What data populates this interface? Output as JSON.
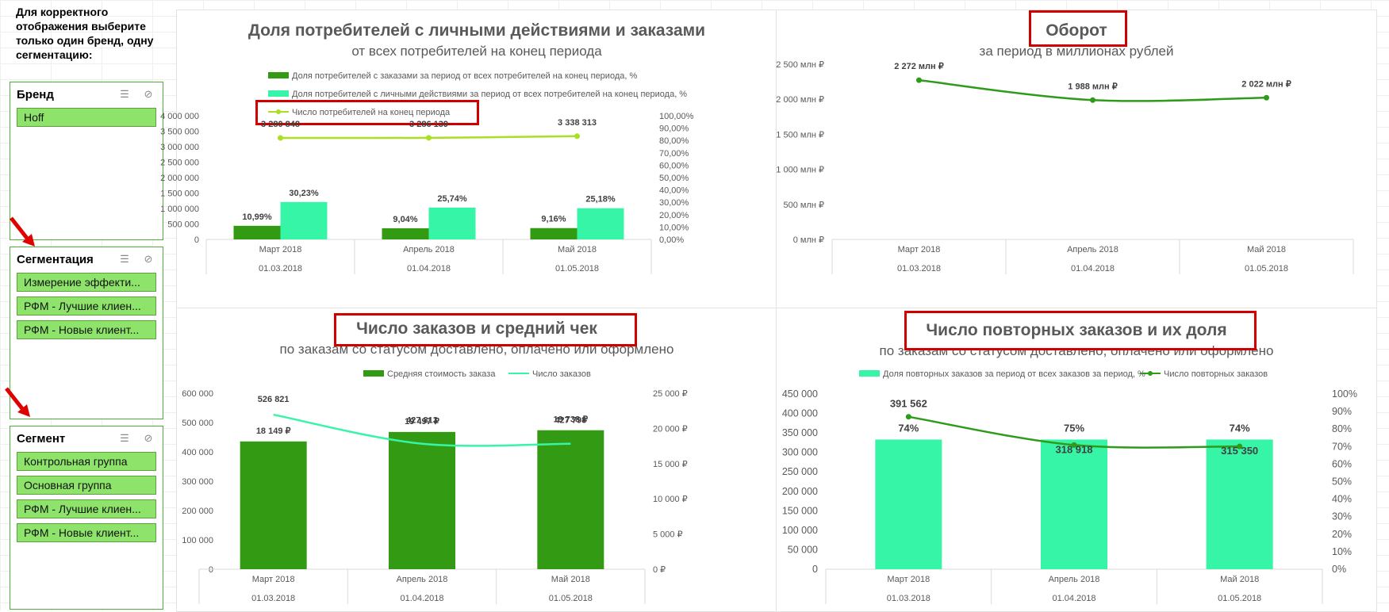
{
  "sidebar": {
    "instruction": "Для корректного отображения выберите только один бренд, одну сегментацию:",
    "slicers": [
      {
        "title": "Бренд",
        "items": [
          "Hoff"
        ]
      },
      {
        "title": "Сегментация",
        "items": [
          "Измерение эффекти...",
          "РФМ - Лучшие клиен...",
          "РФМ - Новые клиент..."
        ]
      },
      {
        "title": "Сегмент",
        "items": [
          "Контрольная группа",
          "Основная группа",
          "РФМ - Лучшие клиен...",
          "РФМ - Новые клиент..."
        ]
      }
    ]
  },
  "colors": {
    "dark_green": "#339a14",
    "light_green": "#37f5a6",
    "lime": "#a9e021",
    "line_green": "#2e9b1b",
    "red": "#d00000"
  },
  "icons": [
    "multiselect-icon",
    "clear-filter-icon",
    "red-arrow-icon"
  ],
  "panels": {
    "p1": {
      "title": "Доля потребителей с личными действиями и заказами",
      "subtitle": "от всех потребителей на конец периода"
    },
    "p2": {
      "title": "Оборот",
      "subtitle": "за период в миллионах рублей"
    },
    "p3": {
      "title": "Число заказов и средний чек",
      "subtitle": "по заказам со статусом доставлено, оплачено или оформлено"
    },
    "p4": {
      "title": "Число повторных заказов и их доля",
      "subtitle": "по заказам со статусом доставлено, оплачено или оформлено"
    }
  },
  "chart_data": [
    {
      "type": "bar",
      "categories": [
        "Март 2018",
        "Апрель 2018",
        "Май 2018"
      ],
      "category_dates": [
        "01.03.2018",
        "01.04.2018",
        "01.05.2018"
      ],
      "series": [
        {
          "name": "Доля потребителей с заказами за период от всех потребителей на конец периода, %",
          "values": [
            10.99,
            9.04,
            9.16
          ],
          "labels": [
            "10,99%",
            "9,04%",
            "9,16%"
          ],
          "axis": "right"
        },
        {
          "name": "Доля потребителей с личными действиями за период от всех потребителей на конец периода, %",
          "values": [
            30.23,
            25.74,
            25.18
          ],
          "labels": [
            "30,23%",
            "25,74%",
            "25,18%"
          ],
          "axis": "right"
        },
        {
          "name": "Число потребителей на конец периода",
          "type": "line",
          "values": [
            3280848,
            3286139,
            3338313
          ],
          "labels": [
            "3 280 848",
            "3 286 139",
            "3 338 313"
          ],
          "axis": "left"
        }
      ],
      "ylim_left": [
        0,
        4000000
      ],
      "left_ticks": [
        "4 000 000",
        "3 500 000",
        "3 000 000",
        "2 500 000",
        "2 000 000",
        "1 500 000",
        "1 000 000",
        "500 000",
        "0"
      ],
      "ylim_right": [
        0,
        100
      ],
      "right_ticks": [
        "100,00%",
        "90,00%",
        "80,00%",
        "70,00%",
        "60,00%",
        "50,00%",
        "40,00%",
        "30,00%",
        "20,00%",
        "10,00%",
        "0,00%"
      ]
    },
    {
      "type": "line",
      "categories": [
        "Март 2018",
        "Апрель 2018",
        "Май 2018"
      ],
      "category_dates": [
        "01.03.2018",
        "01.04.2018",
        "01.05.2018"
      ],
      "series": [
        {
          "values": [
            2272,
            1988,
            2022
          ],
          "labels": [
            "2 272 млн ₽",
            "1 988 млн ₽",
            "2 022 млн ₽"
          ]
        }
      ],
      "ylim": [
        0,
        2500
      ],
      "ticks": [
        "2 500 млн ₽",
        "2 000 млн ₽",
        "1 500 млн ₽",
        "1 000 млн ₽",
        "500 млн ₽",
        "0 млн ₽"
      ]
    },
    {
      "type": "bar",
      "categories": [
        "Март 2018",
        "Апрель 2018",
        "Май 2018"
      ],
      "category_dates": [
        "01.03.2018",
        "01.04.2018",
        "01.05.2018"
      ],
      "series": [
        {
          "name": "Средняя стоимость заказа",
          "values": [
            18149,
            19497,
            19738
          ],
          "labels": [
            "18 149 ₽",
            "19 497 ₽",
            "19 738 ₽"
          ],
          "axis": "right"
        },
        {
          "name": "Число заказов",
          "type": "line",
          "values": [
            526821,
            427813,
            427798
          ],
          "labels": [
            "526 821",
            "427 813",
            "427 798"
          ],
          "axis": "left"
        }
      ],
      "ylim_left": [
        0,
        600000
      ],
      "left_ticks": [
        "600 000",
        "500 000",
        "400 000",
        "300 000",
        "200 000",
        "100 000",
        "0"
      ],
      "ylim_right": [
        0,
        25000
      ],
      "right_ticks": [
        "25 000 ₽",
        "20 000 ₽",
        "15 000 ₽",
        "10 000 ₽",
        "5 000 ₽",
        "0 ₽"
      ]
    },
    {
      "type": "bar",
      "categories": [
        "Март 2018",
        "Апрель 2018",
        "Май 2018"
      ],
      "category_dates": [
        "01.03.2018",
        "01.04.2018",
        "01.05.2018"
      ],
      "series": [
        {
          "name": "Доля повторных заказов за период от всех заказов за период, %",
          "values": [
            74,
            75,
            74
          ],
          "labels": [
            "74%",
            "75%",
            "74%"
          ],
          "axis": "right"
        },
        {
          "name": "Число повторных заказов",
          "type": "line",
          "values": [
            391562,
            318918,
            315350
          ],
          "labels": [
            "391 562",
            "318 918",
            "315 350"
          ],
          "axis": "left"
        }
      ],
      "ylim_left": [
        0,
        450000
      ],
      "left_ticks": [
        "450 000",
        "400 000",
        "350 000",
        "300 000",
        "250 000",
        "200 000",
        "150 000",
        "100 000",
        "50 000",
        "0"
      ],
      "ylim_right": [
        0,
        100
      ],
      "right_ticks": [
        "100%",
        "90%",
        "80%",
        "70%",
        "60%",
        "50%",
        "40%",
        "30%",
        "20%",
        "10%",
        "0%"
      ]
    }
  ]
}
